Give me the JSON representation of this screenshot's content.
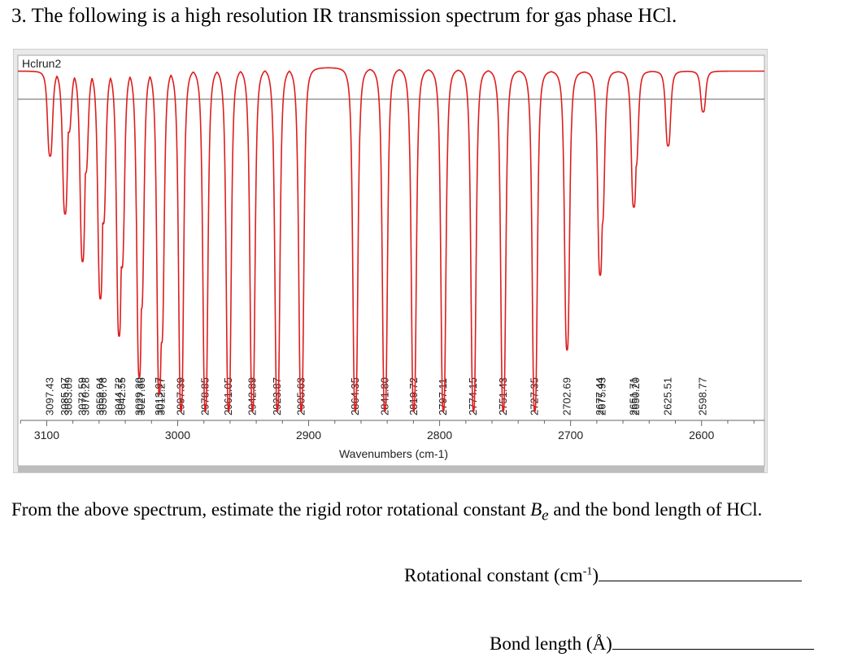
{
  "question": {
    "number": "3.",
    "text": "The following is a high resolution IR transmission spectrum for gas phase HCl."
  },
  "chart_data": {
    "type": "line",
    "title": "Hclrun2",
    "xlabel": "Wavenumbers (cm-1)",
    "ylabel": "",
    "xlim": [
      3122,
      2552
    ],
    "ylim": [
      0,
      1
    ],
    "x_reversed": true,
    "x_ticks": [
      3100,
      3000,
      2900,
      2800,
      2700,
      2600
    ],
    "line_color": "#dd1e1e",
    "peak_labels": [
      "3097.43",
      "3085.97",
      "3083.09",
      "3072.59",
      "3070.28",
      "3059.04",
      "3056.78",
      "3044.72",
      "3042.55",
      "3029.30",
      "3027.66",
      "3013.97",
      "3012.27",
      "2997.39",
      "2978.85",
      "2961.05",
      "2942.89",
      "2923.87",
      "2905.63",
      "2864.35",
      "2841.80",
      "2819.72",
      "2797.11",
      "2774.15",
      "2751.43",
      "2727.35",
      "2702.69",
      "2677.44",
      "2675.93",
      "2651.71",
      "2650.20",
      "2625.51",
      "2598.77"
    ],
    "peaks": [
      {
        "x": 3097.43,
        "depth": 0.25
      },
      {
        "x": 3085.97,
        "depth": 0.42
      },
      {
        "x": 3083.09,
        "depth": 0.18
      },
      {
        "x": 3072.59,
        "depth": 0.56
      },
      {
        "x": 3070.28,
        "depth": 0.3
      },
      {
        "x": 3059.04,
        "depth": 0.67
      },
      {
        "x": 3056.78,
        "depth": 0.45
      },
      {
        "x": 3044.72,
        "depth": 0.78
      },
      {
        "x": 3042.55,
        "depth": 0.58
      },
      {
        "x": 3029.3,
        "depth": 0.9
      },
      {
        "x": 3027.66,
        "depth": 0.7
      },
      {
        "x": 3013.97,
        "depth": 0.95
      },
      {
        "x": 3012.27,
        "depth": 0.8
      },
      {
        "x": 2997.39,
        "depth": 1.0
      },
      {
        "x": 2978.85,
        "depth": 1.0
      },
      {
        "x": 2961.05,
        "depth": 1.0
      },
      {
        "x": 2942.89,
        "depth": 1.0
      },
      {
        "x": 2923.87,
        "depth": 1.0
      },
      {
        "x": 2905.63,
        "depth": 1.0
      },
      {
        "x": 2864.35,
        "depth": 1.0
      },
      {
        "x": 2841.8,
        "depth": 1.0
      },
      {
        "x": 2819.72,
        "depth": 1.0
      },
      {
        "x": 2797.11,
        "depth": 1.0
      },
      {
        "x": 2774.15,
        "depth": 1.0
      },
      {
        "x": 2751.43,
        "depth": 1.0
      },
      {
        "x": 2727.35,
        "depth": 1.0
      },
      {
        "x": 2702.69,
        "depth": 0.82
      },
      {
        "x": 2677.44,
        "depth": 0.6
      },
      {
        "x": 2675.93,
        "depth": 0.45
      },
      {
        "x": 2651.71,
        "depth": 0.4
      },
      {
        "x": 2650.2,
        "depth": 0.28
      },
      {
        "x": 2625.51,
        "depth": 0.22
      },
      {
        "x": 2598.77,
        "depth": 0.12
      }
    ]
  },
  "prompt": {
    "text_before": "From the above spectrum, estimate the rigid rotor rotational constant ",
    "symbol": "B",
    "subscript": "e",
    "text_after": " and the bond length of HCl."
  },
  "answers": {
    "rot_label": "Rotational constant (cm",
    "rot_sup": "-1",
    "rot_close": ")",
    "bond_label": "Bond length (Å)"
  }
}
